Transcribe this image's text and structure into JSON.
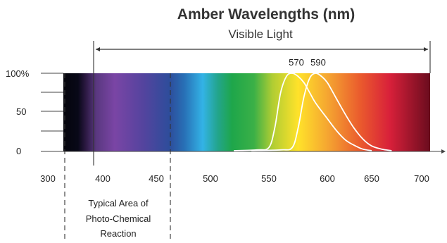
{
  "chart_data": {
    "type": "line",
    "title": "Amber Wavelengths (nm)",
    "subtitle": "Visible Light",
    "x_ticks": [
      "300",
      "400",
      "450",
      "500",
      "550",
      "600",
      "650",
      "700"
    ],
    "y_ticks": [
      "100%",
      "50",
      "0"
    ],
    "xlim": [
      290,
      710
    ],
    "ylim": [
      0,
      100
    ],
    "visible_range": [
      390,
      700
    ],
    "peak_labels": [
      "570",
      "590"
    ],
    "annotation": [
      "Typical Area of",
      "Photo-Chemical",
      "Reaction"
    ],
    "annotation_range": [
      300,
      460
    ],
    "series": [
      {
        "x": [
          520,
          540,
          550,
          555,
          560,
          565,
          570,
          575,
          580,
          585,
          590,
          600,
          610,
          620,
          630,
          640,
          650
        ],
        "y": [
          1,
          2,
          5,
          30,
          75,
          96,
          100,
          96,
          88,
          75,
          62,
          42,
          27,
          15,
          8,
          3,
          1
        ]
      },
      {
        "x": [
          535,
          560,
          570,
          575,
          580,
          585,
          590,
          595,
          600,
          610,
          620,
          630,
          640,
          650,
          660,
          670
        ],
        "y": [
          1,
          2,
          5,
          30,
          70,
          94,
          100,
          96,
          88,
          68,
          48,
          30,
          16,
          7,
          3,
          1
        ]
      }
    ]
  }
}
